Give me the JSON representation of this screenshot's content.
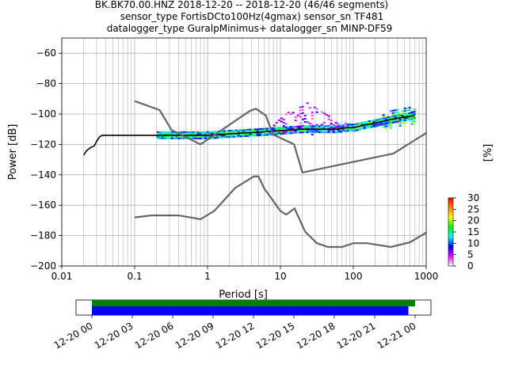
{
  "header": {
    "title_line1": "BK.BK70.00.HNZ   2018-12-20 -- 2018-12-20  (46/46 segments)",
    "title_line2": "sensor_type FortisDCto100Hz(4gmax) sensor_sn TF481",
    "title_line3": "datalogger_type GuralpMinimus+ datalogger_sn MINP-DF59"
  },
  "chart_data": [
    {
      "type": "line",
      "title": "BK.BK70.00.HNZ   2018-12-20 -- 2018-12-20  (46/46 segments)",
      "xlabel": "Period [s]",
      "ylabel": "Power [dB]",
      "xscale": "log",
      "xlim": [
        0.01,
        1000
      ],
      "ylim": [
        -200,
        -50
      ],
      "grid": true,
      "xticks": [
        "0.01",
        "0.1",
        "1",
        "10",
        "100",
        "1000"
      ],
      "yticks": [
        "−60",
        "−80",
        "−100",
        "−120",
        "−140",
        "−160",
        "−180",
        "−200"
      ],
      "series": [
        {
          "key": "mean_psd",
          "color": "#000000",
          "x": [
            0.02,
            0.022,
            0.025,
            0.028,
            0.03,
            0.033,
            0.036,
            0.05,
            0.1,
            0.2,
            0.5,
            1,
            2,
            5,
            10,
            20,
            40,
            60,
            80,
            100,
            150,
            200,
            300,
            500,
            700
          ],
          "y": [
            -127,
            -124,
            -122,
            -121,
            -118,
            -115,
            -114,
            -114,
            -114,
            -114,
            -114,
            -114,
            -113,
            -112,
            -111,
            -110,
            -110,
            -110,
            -109,
            -109,
            -107,
            -106,
            -104,
            -102,
            -101
          ]
        },
        {
          "key": "nhnm_upper",
          "color": "#666666",
          "x": [
            0.1,
            0.22,
            0.32,
            0.8,
            3.8,
            4.6,
            6.3,
            7.9,
            15.4,
            20,
            354.8,
            1000
          ],
          "y": [
            -91.5,
            -97.4,
            -110.5,
            -120,
            -98,
            -96.5,
            -101,
            -113.5,
            -120,
            -138.5,
            -126,
            -112.5
          ]
        },
        {
          "key": "nlnm_lower",
          "color": "#666666",
          "x": [
            0.1,
            0.17,
            0.4,
            0.8,
            1.24,
            2.4,
            4.3,
            5,
            6,
            10,
            12,
            15.6,
            21.9,
            31.6,
            45,
            70,
            101,
            154,
            328,
            600,
            1000
          ],
          "y": [
            -168,
            -166.7,
            -166.7,
            -169.2,
            -163.7,
            -148.6,
            -141.1,
            -141.1,
            -149,
            -163.8,
            -166.2,
            -162.1,
            -177.5,
            -185,
            -187.5,
            -187.5,
            -185,
            -185,
            -187.5,
            -184.4,
            -178
          ]
        },
        {
          "key": "psd_histogram_spread",
          "color": "#ff00ff",
          "x": [
            7,
            9,
            12,
            15,
            18,
            22,
            28,
            35,
            45,
            60,
            80
          ],
          "y_max": [
            -110,
            -104,
            -99,
            -96,
            -93,
            -92,
            -95,
            -98,
            -101,
            -104,
            -106
          ],
          "y_min": [
            -113,
            -114,
            -114,
            -113,
            -113,
            -113,
            -113,
            -112,
            -112,
            -111,
            -111
          ]
        }
      ]
    },
    {
      "type": "bar",
      "title": "",
      "xlabel": "",
      "xticks": [
        "12-20 00",
        "12-20 03",
        "12-20 06",
        "12-20 09",
        "12-20 12",
        "12-20 15",
        "12-20 18",
        "12-20 21",
        "12-21 00"
      ],
      "series": [
        {
          "key": "data_coverage",
          "color": "#008000",
          "start_hour": 0.0,
          "end_hour": 24.5
        },
        {
          "key": "psd_segments",
          "color": "#0000ff",
          "start_hour": 0.0,
          "end_hour": 23.5
        }
      ]
    },
    {
      "type": "heatmap",
      "colorbar_label": "[%]",
      "ticks": [
        "0",
        "5",
        "10",
        "15",
        "20",
        "25",
        "30"
      ],
      "range": [
        0,
        30
      ],
      "colormap": [
        "#ffffff",
        "#ff00ff",
        "#0000ff",
        "#00ffff",
        "#00ff00",
        "#ffff00",
        "#ff8000",
        "#ff0000"
      ]
    }
  ]
}
